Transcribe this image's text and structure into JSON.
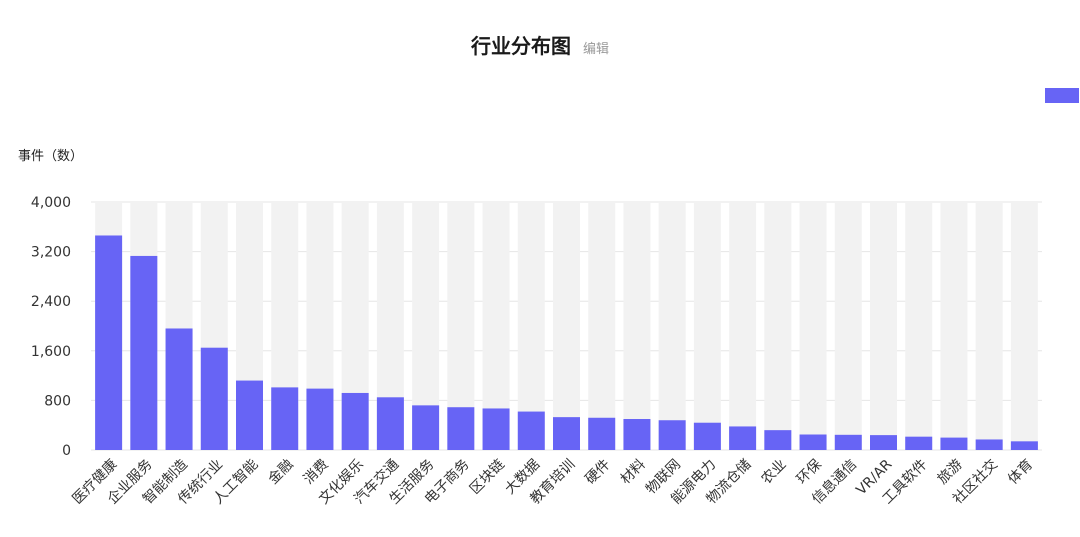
{
  "header": {
    "title": "行业分布图",
    "edit_label": "编辑"
  },
  "chart_data": {
    "type": "bar",
    "ylabel": "事件（数）",
    "ylim": [
      0,
      4000
    ],
    "yticks": [
      0,
      800,
      1600,
      2400,
      3200,
      4000
    ],
    "ytick_labels": [
      "0",
      "800",
      "1,600",
      "2,400",
      "3,200",
      "4,000"
    ],
    "legend_position": "top-right",
    "grid": true,
    "bar_color": "#6764F5",
    "background_bar_color": "#F2F2F2",
    "categories": [
      "医疗健康",
      "企业服务",
      "智能制造",
      "传统行业",
      "人工智能",
      "金融",
      "消费",
      "文化娱乐",
      "汽车交通",
      "生活服务",
      "电子商务",
      "区块链",
      "大数据",
      "教育培训",
      "硬件",
      "材料",
      "物联网",
      "能源电力",
      "物流仓储",
      "农业",
      "环保",
      "信息通信",
      "VR/AR",
      "工具软件",
      "旅游",
      "社区社交",
      "体育"
    ],
    "values": [
      3460,
      3130,
      1960,
      1650,
      1120,
      1010,
      990,
      920,
      850,
      720,
      690,
      670,
      620,
      530,
      520,
      500,
      480,
      440,
      380,
      320,
      250,
      245,
      240,
      215,
      200,
      170,
      140
    ]
  }
}
